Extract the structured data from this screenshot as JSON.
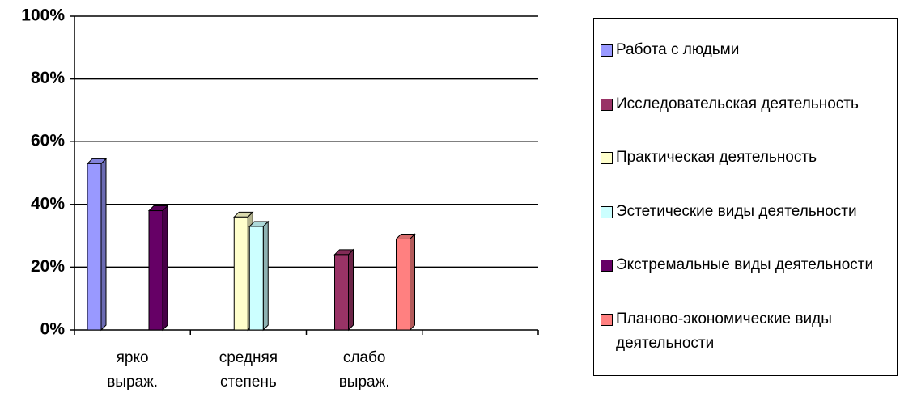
{
  "chart_data": {
    "type": "bar3d",
    "categories": [
      "ярко выраж.",
      "средняя степень",
      "слабо выраж.",
      null
    ],
    "series": [
      {
        "name": "Работа с людьми",
        "color": "#9999ff",
        "values": [
          53,
          null,
          null,
          null
        ]
      },
      {
        "name": "Исследовательская деятельность",
        "color": "#993366",
        "values": [
          null,
          null,
          24,
          null
        ]
      },
      {
        "name": "Практическая деятельность",
        "color": "#ffffcc",
        "values": [
          null,
          36,
          null,
          null
        ]
      },
      {
        "name": "Эстетические виды деятельности",
        "color": "#ccffff",
        "values": [
          null,
          33,
          null,
          null
        ]
      },
      {
        "name": "Экстремальные виды деятельности",
        "color": "#660066",
        "values": [
          38,
          null,
          null,
          null
        ]
      },
      {
        "name": "Планово-экономические виды деятельности",
        "color": "#ff8080",
        "values": [
          null,
          null,
          29,
          null
        ]
      }
    ],
    "ylim": [
      0,
      100
    ],
    "yticks": [
      {
        "value": 0,
        "label": "0%"
      },
      {
        "value": 20,
        "label": "20%"
      },
      {
        "value": 40,
        "label": "40%"
      },
      {
        "value": 60,
        "label": "60%"
      },
      {
        "value": 80,
        "label": "80%"
      },
      {
        "value": 100,
        "label": "100%"
      }
    ],
    "grid": true,
    "legend": "right"
  }
}
